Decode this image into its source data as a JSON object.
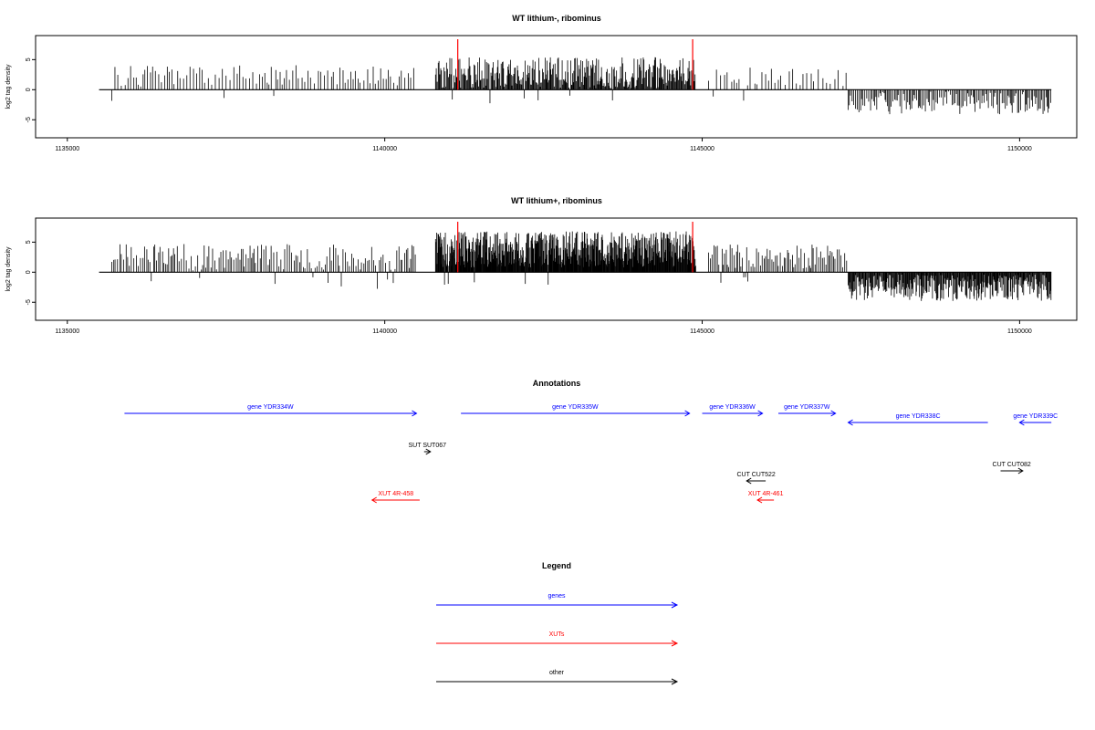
{
  "chart_data": [
    {
      "type": "bar",
      "title": "WT lithium-, ribominus",
      "ylabel": "log2 tag density",
      "xlim": [
        1134500,
        1150900
      ],
      "ylim": [
        -8,
        9
      ],
      "x_ticks": [
        1135000,
        1140000,
        1145000,
        1150000
      ],
      "x_tick_labels": [
        "1135000",
        "1140000",
        "1145000",
        "1150000"
      ],
      "y_ticks": [
        -5,
        0,
        5
      ],
      "y_tick_labels": [
        "-5",
        "0",
        "5"
      ],
      "baseline": {
        "x_start": 1135500,
        "x_end": 1150500,
        "y": 0
      },
      "highlight_color": "#ff0000",
      "highlights": [
        1141150,
        1144850
      ],
      "segments": [
        {
          "x_start": 1135700,
          "x_end": 1140500,
          "mean": 2.3,
          "amp": 1.8,
          "step": 45,
          "neg_prob": 0.03
        },
        {
          "x_start": 1140800,
          "x_end": 1144900,
          "mean": 2.8,
          "amp": 2.6,
          "step": 12,
          "neg_prob": 0.02
        },
        {
          "x_start": 1145100,
          "x_end": 1147300,
          "mean": 2.1,
          "amp": 1.6,
          "step": 55,
          "neg_prob": 0.04
        },
        {
          "x_start": 1147300,
          "x_end": 1150500,
          "mean": -2.2,
          "amp": 1.9,
          "step": 22,
          "neg_prob": 0.0
        }
      ]
    },
    {
      "type": "bar",
      "title": "WT lithium+, ribominus",
      "ylabel": "log2 tag density",
      "xlim": [
        1134500,
        1150900
      ],
      "ylim": [
        -8,
        9
      ],
      "x_ticks": [
        1135000,
        1140000,
        1145000,
        1150000
      ],
      "x_tick_labels": [
        "1135000",
        "1140000",
        "1145000",
        "1150000"
      ],
      "y_ticks": [
        -5,
        0,
        5
      ],
      "y_tick_labels": [
        "-5",
        "0",
        "5"
      ],
      "baseline": {
        "x_start": 1135500,
        "x_end": 1150500,
        "y": 0
      },
      "highlight_color": "#ff0000",
      "highlights": [
        1141150,
        1144850
      ],
      "segments": [
        {
          "x_start": 1135700,
          "x_end": 1140500,
          "mean": 2.5,
          "amp": 2.2,
          "step": 30,
          "neg_prob": 0.05
        },
        {
          "x_start": 1140800,
          "x_end": 1144900,
          "mean": 3.8,
          "amp": 3.0,
          "step": 7,
          "neg_prob": 0.01
        },
        {
          "x_start": 1145100,
          "x_end": 1147300,
          "mean": 2.6,
          "amp": 2.0,
          "step": 25,
          "neg_prob": 0.04
        },
        {
          "x_start": 1147300,
          "x_end": 1150500,
          "mean": -2.6,
          "amp": 2.2,
          "step": 10,
          "neg_prob": 0.0
        }
      ]
    }
  ],
  "annotations": {
    "title": "Annotations",
    "features": [
      {
        "label": "gene YDR334W",
        "color": "#0000ff",
        "start": 1135900,
        "end": 1140500,
        "dir": "right",
        "row": 0
      },
      {
        "label": "gene YDR335W",
        "color": "#0000ff",
        "start": 1141200,
        "end": 1144800,
        "dir": "right",
        "row": 0
      },
      {
        "label": "gene YDR336W",
        "color": "#0000ff",
        "start": 1145000,
        "end": 1145950,
        "dir": "right",
        "row": 0
      },
      {
        "label": "gene YDR337W",
        "color": "#0000ff",
        "start": 1146200,
        "end": 1147100,
        "dir": "right",
        "row": 0
      },
      {
        "label": "gene YDR338C",
        "color": "#0000ff",
        "start": 1147300,
        "end": 1149500,
        "dir": "left",
        "row": 1
      },
      {
        "label": "gene YDR339C",
        "color": "#0000ff",
        "start": 1150000,
        "end": 1150500,
        "dir": "left",
        "row": 1
      },
      {
        "label": "SUT SUT067",
        "color": "#000000",
        "start": 1140620,
        "end": 1140720,
        "dir": "right",
        "row": 2
      },
      {
        "label": "CUT CUT522",
        "color": "#000000",
        "start": 1145700,
        "end": 1146000,
        "dir": "left",
        "row": 3
      },
      {
        "label": "CUT CUT082",
        "color": "#000000",
        "start": 1149700,
        "end": 1150050,
        "dir": "right",
        "row": 4
      },
      {
        "label": "XUT 4R-458",
        "color": "#ff0000",
        "start": 1139800,
        "end": 1140550,
        "dir": "left",
        "row": 5
      },
      {
        "label": "XUT 4R-461",
        "color": "#ff0000",
        "start": 1145870,
        "end": 1146130,
        "dir": "left",
        "row": 5
      }
    ]
  },
  "legend": {
    "title": "Legend",
    "items": [
      {
        "label": "genes",
        "color": "#0000ff"
      },
      {
        "label": "XUTs",
        "color": "#ff0000"
      },
      {
        "label": "other",
        "color": "#000000"
      }
    ]
  }
}
